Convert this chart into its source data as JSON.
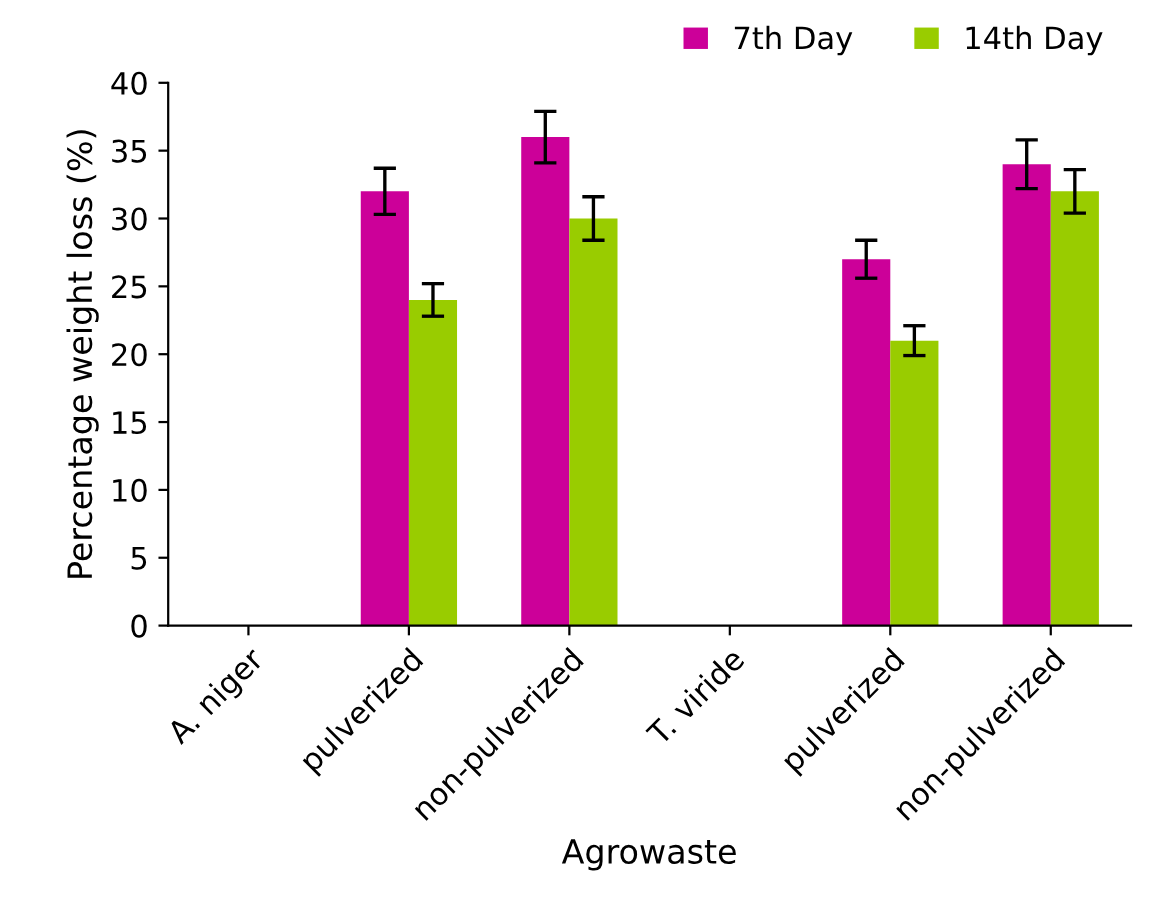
{
  "chart_data": {
    "type": "bar",
    "xlabel": "Agrowaste",
    "ylabel": "Percentage weight loss (%)",
    "categories": [
      "A. niger",
      "pulverized",
      "non-pulverized",
      "T. viride",
      "pulverized",
      "non-pulverized"
    ],
    "series": [
      {
        "name": "7th Day",
        "color": "#cc0099",
        "values": [
          null,
          32,
          36,
          null,
          27,
          34
        ],
        "errors": [
          null,
          1.7,
          1.9,
          null,
          1.4,
          1.8
        ]
      },
      {
        "name": "14th Day",
        "color": "#99cc00",
        "values": [
          null,
          24,
          30,
          null,
          21,
          32
        ],
        "errors": [
          null,
          1.2,
          1.6,
          null,
          1.1,
          1.6
        ]
      }
    ],
    "ylim": [
      0,
      40
    ],
    "yticks": [
      0,
      5,
      10,
      15,
      20,
      25,
      30,
      35,
      40
    ],
    "grid": false,
    "legend": "top right"
  }
}
